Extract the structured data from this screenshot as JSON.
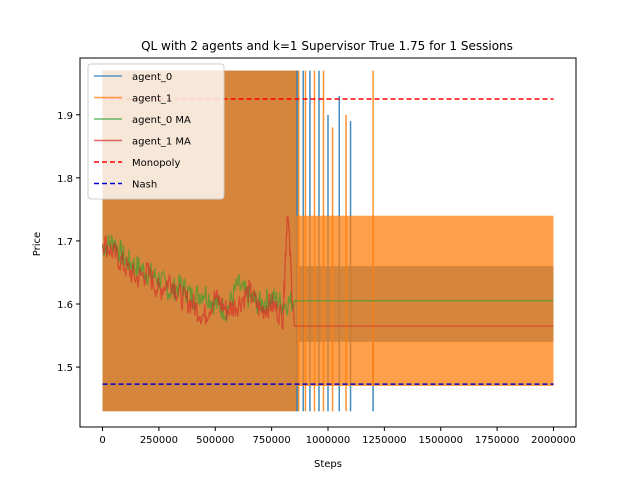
{
  "chart_data": {
    "type": "line",
    "title": "QL with 2 agents and k=1 Supervisor True 1.75  for 1 Sessions",
    "xlabel": "Steps",
    "ylabel": "Price",
    "xlim": [
      -100000,
      2100000
    ],
    "ylim": [
      1.405,
      1.99
    ],
    "xticks": [
      0,
      250000,
      500000,
      750000,
      1000000,
      1250000,
      1500000,
      1750000,
      2000000
    ],
    "xtick_labels": [
      "0",
      "250000",
      "500000",
      "750000",
      "1000000",
      "1250000",
      "1500000",
      "1750000",
      "2000000"
    ],
    "yticks": [
      1.5,
      1.6,
      1.7,
      1.8,
      1.9
    ],
    "ytick_labels": [
      "1.5",
      "1.6",
      "1.7",
      "1.8",
      "1.9"
    ],
    "grid": false,
    "legend_position": "top-left",
    "series": [
      {
        "name": "agent_0",
        "color": "#1f77b4",
        "style": "solid",
        "opacity": 0.75,
        "fill_bands": [
          {
            "x": [
              0,
              800000
            ],
            "y": [
              1.43,
              1.97
            ]
          },
          {
            "x": [
              800000,
              870000
            ],
            "y": [
              1.43,
              1.97
            ]
          },
          {
            "x": [
              870000,
              2000000
            ],
            "y": [
              1.54,
              1.66
            ]
          }
        ],
        "spikes": [
          {
            "x": 860000,
            "y": [
              1.43,
              1.97
            ]
          },
          {
            "x": 890000,
            "y": [
              1.43,
              1.97
            ]
          },
          {
            "x": 920000,
            "y": [
              1.43,
              1.97
            ]
          },
          {
            "x": 960000,
            "y": [
              1.43,
              1.97
            ]
          },
          {
            "x": 1000000,
            "y": [
              1.43,
              1.9
            ]
          },
          {
            "x": 1050000,
            "y": [
              1.43,
              1.93
            ]
          },
          {
            "x": 1100000,
            "y": [
              1.43,
              1.89
            ]
          },
          {
            "x": 1200000,
            "y": [
              1.43,
              1.6
            ]
          }
        ]
      },
      {
        "name": "agent_1",
        "color": "#ff7f0e",
        "style": "solid",
        "opacity": 0.75,
        "fill_bands": [
          {
            "x": [
              0,
              800000
            ],
            "y": [
              1.43,
              1.97
            ]
          },
          {
            "x": [
              800000,
              860000
            ],
            "y": [
              1.43,
              1.97
            ]
          },
          {
            "x": [
              860000,
              2000000
            ],
            "y": [
              1.47,
              1.74
            ]
          }
        ],
        "spikes": [
          {
            "x": 870000,
            "y": [
              1.43,
              1.97
            ]
          },
          {
            "x": 900000,
            "y": [
              1.43,
              1.97
            ]
          },
          {
            "x": 940000,
            "y": [
              1.43,
              1.97
            ]
          },
          {
            "x": 980000,
            "y": [
              1.43,
              1.97
            ]
          },
          {
            "x": 1020000,
            "y": [
              1.43,
              1.88
            ]
          },
          {
            "x": 1080000,
            "y": [
              1.43,
              1.9
            ]
          },
          {
            "x": 1200000,
            "y": [
              1.47,
              1.97
            ]
          }
        ]
      },
      {
        "name": "agent_0 MA",
        "color": "#2ca02c",
        "style": "solid",
        "opacity": 0.6,
        "x": [
          0,
          50000,
          100000,
          150000,
          200000,
          250000,
          300000,
          350000,
          400000,
          450000,
          500000,
          550000,
          600000,
          650000,
          700000,
          750000,
          800000,
          850000,
          900000,
          1000000,
          1500000,
          2000000
        ],
        "y": [
          1.69,
          1.7,
          1.67,
          1.66,
          1.65,
          1.64,
          1.62,
          1.63,
          1.61,
          1.62,
          1.6,
          1.59,
          1.63,
          1.61,
          1.6,
          1.61,
          1.6,
          1.605,
          1.605,
          1.605,
          1.605,
          1.605
        ]
      },
      {
        "name": "agent_1 MA",
        "color": "#d62728",
        "style": "solid",
        "opacity": 0.6,
        "x": [
          0,
          50000,
          100000,
          150000,
          200000,
          250000,
          300000,
          350000,
          400000,
          450000,
          500000,
          550000,
          600000,
          650000,
          700000,
          750000,
          800000,
          820000,
          850000,
          900000,
          1000000,
          1500000,
          2000000
        ],
        "y": [
          1.7,
          1.68,
          1.66,
          1.64,
          1.65,
          1.62,
          1.64,
          1.61,
          1.6,
          1.58,
          1.61,
          1.59,
          1.6,
          1.62,
          1.59,
          1.6,
          1.58,
          1.75,
          1.565,
          1.565,
          1.565,
          1.565,
          1.565
        ]
      },
      {
        "name": "Monopoly",
        "color": "#ff0000",
        "style": "dashed",
        "x": [
          0,
          2000000
        ],
        "y": [
          1.925,
          1.925
        ]
      },
      {
        "name": "Nash",
        "color": "#0000cc",
        "style": "dashed",
        "x": [
          0,
          2000000
        ],
        "y": [
          1.473,
          1.473
        ]
      }
    ]
  }
}
